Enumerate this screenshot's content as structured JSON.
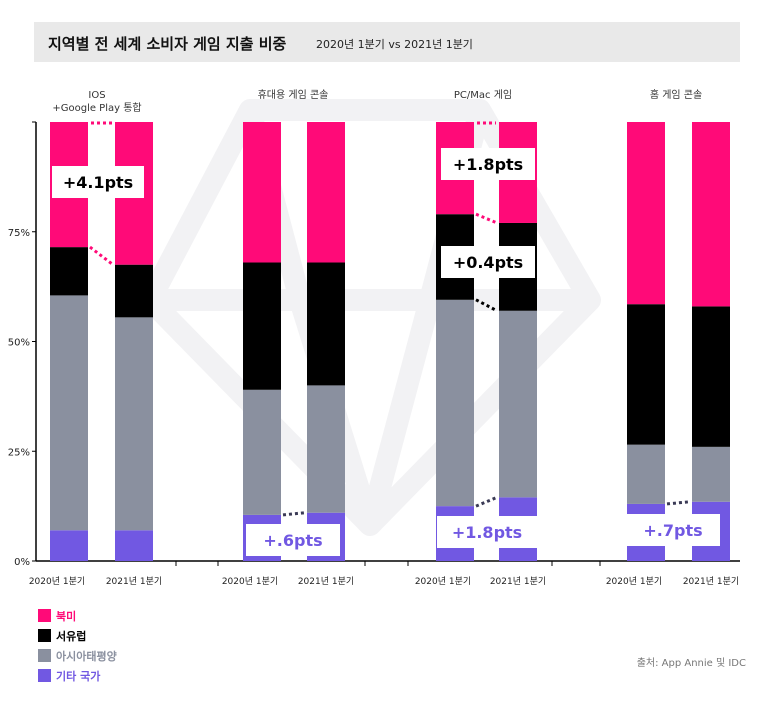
{
  "title": {
    "main": "지역별 전 세계 소비자 게임 지출 비중",
    "sub": "2020년 1분기 vs  2021년 1분기"
  },
  "source": "출처: App Annie 및  IDC",
  "colors": {
    "north_america": "#ff0a78",
    "western_europe": "#000000",
    "asia_pacific": "#8a909f",
    "other": "#7158e2"
  },
  "chart_data": {
    "type": "bar",
    "stacked": true,
    "y_unit": "percent",
    "ylim": [
      0,
      100
    ],
    "y_ticks": [
      "0%",
      "25%",
      "50%",
      "75%"
    ],
    "groups": [
      "IOS\n+Google Play 통합",
      "휴대용 게임 콘솔",
      "PC/Mac 게임",
      "홈 게임 콘솔"
    ],
    "bar_labels": [
      "2020년 1분기",
      "2021년 1분기"
    ],
    "series": [
      {
        "name": "기타 국가",
        "color": "#7158e2",
        "values": [
          [
            7,
            7
          ],
          [
            10.5,
            11
          ],
          [
            12.5,
            14.5
          ],
          [
            13,
            13.5
          ]
        ]
      },
      {
        "name": "아시아태평양",
        "color": "#8a909f",
        "values": [
          [
            53.5,
            48.5
          ],
          [
            28.5,
            29
          ],
          [
            47,
            42.5
          ],
          [
            13.5,
            12.5
          ]
        ]
      },
      {
        "name": "서유럽",
        "color": "#000000",
        "values": [
          [
            11,
            12
          ],
          [
            29,
            28
          ],
          [
            19.5,
            20
          ],
          [
            32,
            32
          ]
        ]
      },
      {
        "name": "북미",
        "color": "#ff0a78",
        "values": [
          [
            28.5,
            32.5
          ],
          [
            32,
            32
          ],
          [
            21,
            23
          ],
          [
            41.5,
            42
          ]
        ]
      }
    ],
    "annotations": [
      {
        "group": 0,
        "text": "+4.1pts",
        "color": "#000000"
      },
      {
        "group": 1,
        "text": "+.6pts",
        "color": "#7158e2"
      },
      {
        "group": 2,
        "text": "+1.8pts",
        "color": "#000000"
      },
      {
        "group": 2,
        "text": "+0.4pts",
        "color": "#000000"
      },
      {
        "group": 2,
        "text": "+1.8pts",
        "color": "#7158e2"
      },
      {
        "group": 3,
        "text": "+.7pts",
        "color": "#7158e2"
      }
    ],
    "legend": [
      "북미",
      "서유럽",
      "아시아태평양",
      "기타 국가"
    ],
    "legend_position": "bottom-left",
    "grid": false
  }
}
